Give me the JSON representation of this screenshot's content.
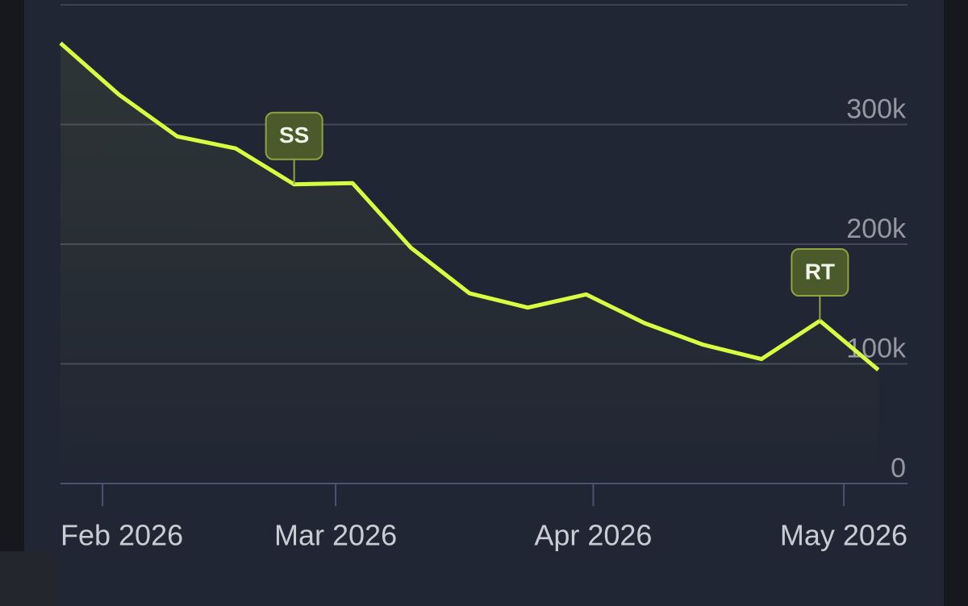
{
  "chart_data": {
    "type": "line",
    "x": [
      0,
      1,
      2,
      3,
      4,
      5,
      6,
      7,
      8,
      9,
      10,
      11,
      12,
      13,
      14
    ],
    "series": [
      {
        "color": "#d7ff42",
        "values": [
          368000,
          325000,
          290000,
          280000,
          250000,
          251000,
          197000,
          159000,
          147000,
          158000,
          134000,
          116000,
          104000,
          136000,
          95000
        ]
      }
    ],
    "xlim": [
      0,
      14.5
    ],
    "xticks": [
      {
        "value": 0.72,
        "label": "Feb 2026"
      },
      {
        "value": 4.71,
        "label": "Mar 2026"
      },
      {
        "value": 9.12,
        "label": "Apr 2026"
      },
      {
        "value": 13.41,
        "label": "May 2026"
      }
    ],
    "ylim": [
      0,
      400000
    ],
    "yticks": [
      0,
      {
        "value": 100000,
        "label": "100k"
      },
      {
        "value": 200000,
        "label": "200k"
      },
      {
        "value": 300000,
        "label": "300k"
      }
    ],
    "grid": true,
    "annotations": [
      {
        "text": "SS",
        "x": 4
      },
      {
        "text": "RT",
        "x": 13
      }
    ]
  }
}
